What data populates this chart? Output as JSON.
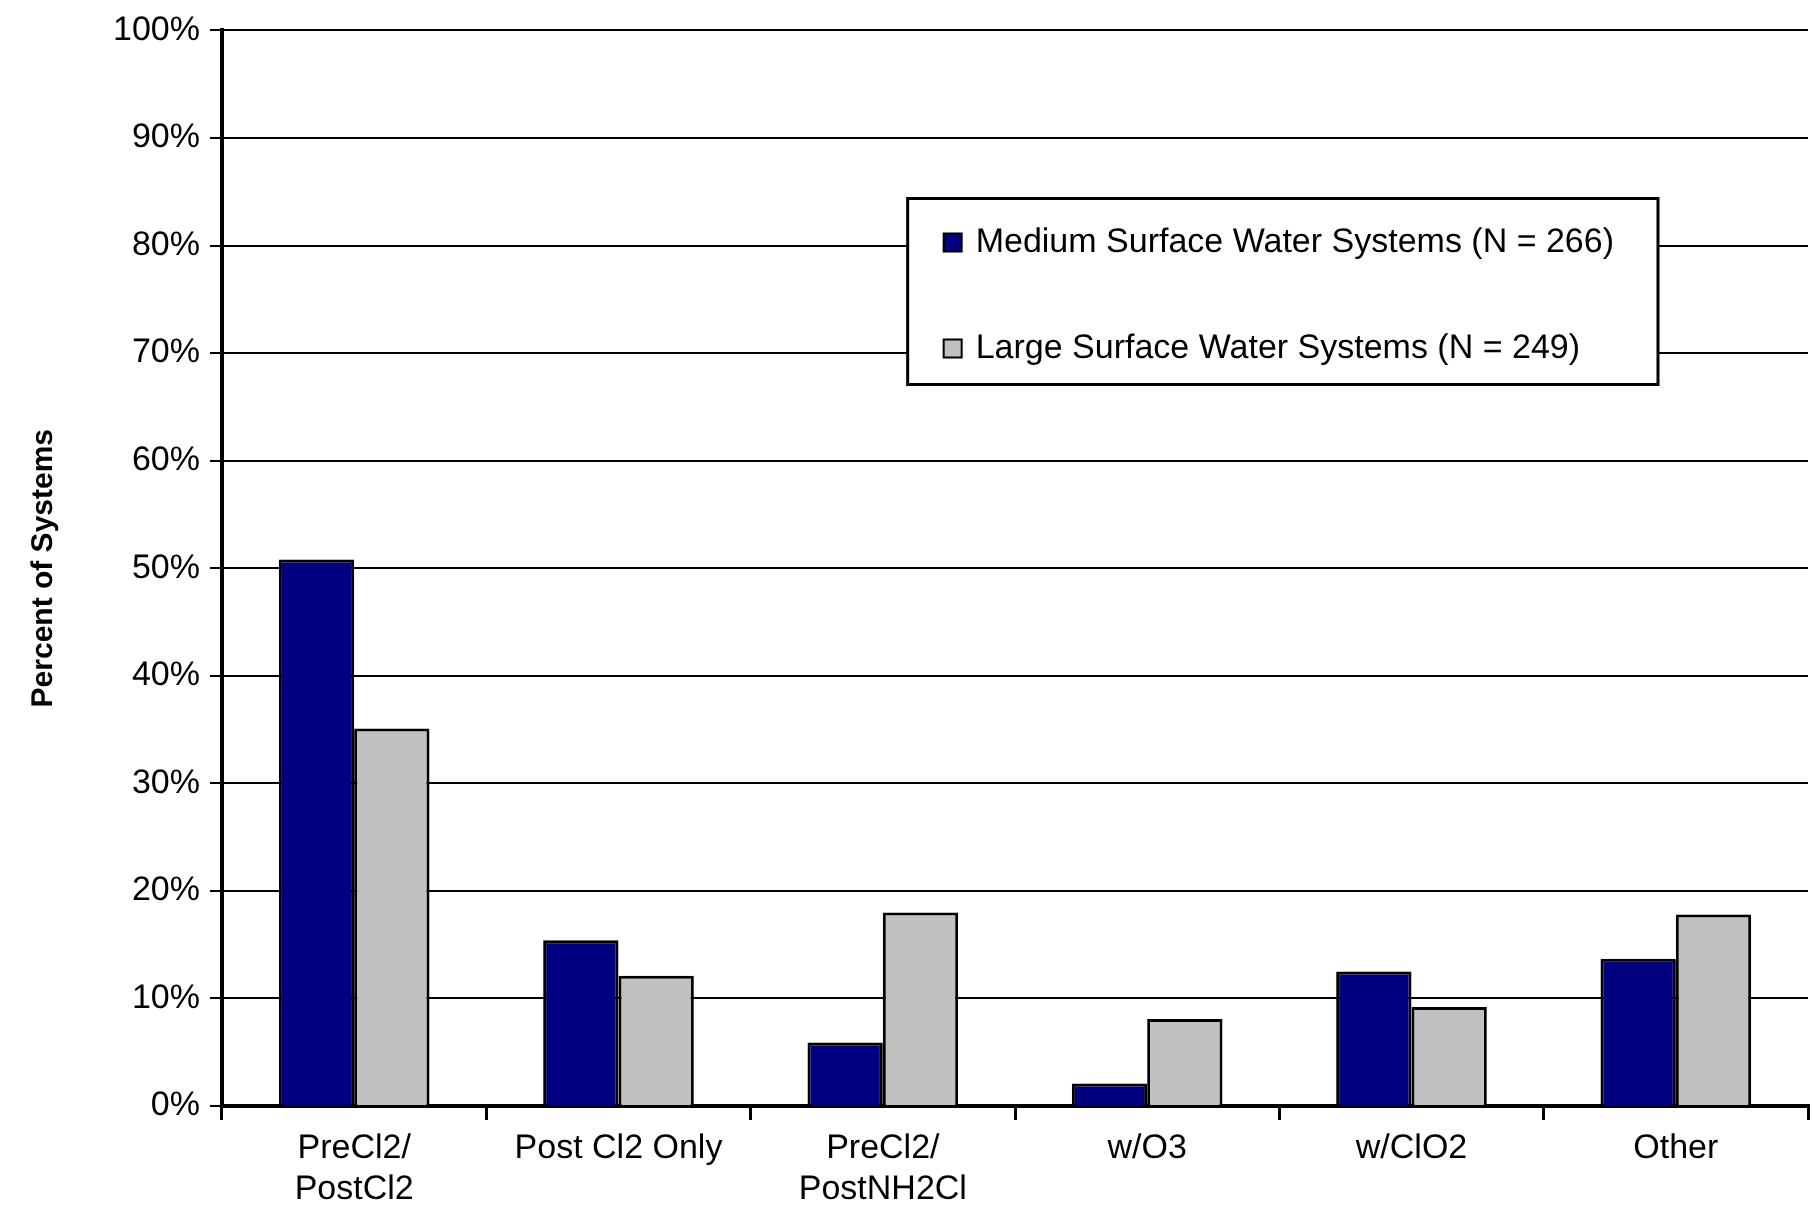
{
  "chart_data": {
    "type": "bar",
    "ylabel": "Percent of Systems",
    "categories": [
      "PreCl2/\nPostCl2",
      "Post Cl2 Only",
      "PreCl2/\nPostNH2Cl",
      "w/O3",
      "w/ClO2",
      "Other"
    ],
    "series": [
      {
        "name": "Medium Surface Water Systems (N = 266)",
        "color": "#000080",
        "values": [
          50.8,
          15.4,
          5.9,
          2.1,
          12.5,
          13.7
        ]
      },
      {
        "name": "Large Surface Water Systems (N = 249)",
        "color": "#c0c0c0",
        "values": [
          35.1,
          12.1,
          18.0,
          8.1,
          9.2,
          17.8
        ]
      }
    ],
    "ylim": [
      0,
      100
    ],
    "yticks": [
      {
        "value": 0,
        "label": "0%"
      },
      {
        "value": 10,
        "label": "10%"
      },
      {
        "value": 20,
        "label": "20%"
      },
      {
        "value": 30,
        "label": "30%"
      },
      {
        "value": 40,
        "label": "40%"
      },
      {
        "value": 50,
        "label": "50%"
      },
      {
        "value": 60,
        "label": "60%"
      },
      {
        "value": 70,
        "label": "70%"
      },
      {
        "value": 80,
        "label": "80%"
      },
      {
        "value": 90,
        "label": "90%"
      },
      {
        "value": 100,
        "label": "100%"
      }
    ],
    "grid": "y",
    "legend": "top right"
  }
}
